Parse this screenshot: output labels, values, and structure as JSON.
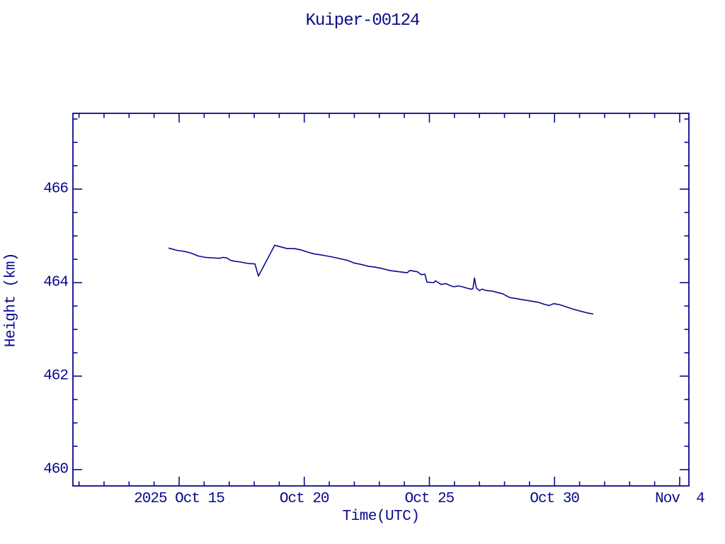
{
  "ink_color": "#0a0a8c",
  "background_color": "#ffffff",
  "chart_data": {
    "type": "line",
    "title": "Kuiper-00124",
    "xlabel": "Time(UTC)",
    "ylabel": "Height (km)",
    "x_unit": "day-of-2025-October decimal (Nov 4 = 35)",
    "xlim": [
      10.757,
      35.368
    ],
    "ylim": [
      459.652,
      467.621
    ],
    "grid": false,
    "legend": "none",
    "line_color": "#0a0a8c",
    "x_major_ticks": [
      {
        "value": 15,
        "label": "2025 Oct 15"
      },
      {
        "value": 20,
        "label": "Oct 20"
      },
      {
        "value": 25,
        "label": "Oct 25"
      },
      {
        "value": 30,
        "label": "Oct 30"
      },
      {
        "value": 35,
        "label": "Nov  4"
      }
    ],
    "x_minor_tick_step_days": 1,
    "y_major_ticks": [
      {
        "value": 460,
        "label": "460"
      },
      {
        "value": 462,
        "label": "462"
      },
      {
        "value": 464,
        "label": "464"
      },
      {
        "value": 466,
        "label": "466"
      }
    ],
    "y_minor_tick_step": 0.5,
    "points": [
      [
        14.58,
        464.74
      ],
      [
        14.92,
        464.69
      ],
      [
        15.2,
        464.67
      ],
      [
        15.48,
        464.63
      ],
      [
        15.76,
        464.57
      ],
      [
        16.05,
        464.54
      ],
      [
        16.33,
        464.53
      ],
      [
        16.61,
        464.52
      ],
      [
        16.75,
        464.54
      ],
      [
        16.9,
        464.53
      ],
      [
        17.04,
        464.48
      ],
      [
        17.18,
        464.46
      ],
      [
        17.46,
        464.44
      ],
      [
        17.74,
        464.41
      ],
      [
        18.03,
        464.4
      ],
      [
        18.17,
        464.14
      ],
      [
        18.82,
        464.8
      ],
      [
        19.3,
        464.73
      ],
      [
        19.58,
        464.73
      ],
      [
        19.87,
        464.7
      ],
      [
        20.15,
        464.65
      ],
      [
        20.43,
        464.61
      ],
      [
        20.71,
        464.59
      ],
      [
        21.0,
        464.56
      ],
      [
        21.28,
        464.53
      ],
      [
        21.7,
        464.48
      ],
      [
        21.99,
        464.42
      ],
      [
        22.27,
        464.39
      ],
      [
        22.55,
        464.35
      ],
      [
        22.84,
        464.33
      ],
      [
        23.12,
        464.3
      ],
      [
        23.4,
        464.26
      ],
      [
        23.83,
        464.23
      ],
      [
        24.11,
        464.21
      ],
      [
        24.22,
        464.26
      ],
      [
        24.53,
        464.23
      ],
      [
        24.67,
        464.17
      ],
      [
        24.82,
        464.18
      ],
      [
        24.9,
        464.01
      ],
      [
        25.18,
        464.0
      ],
      [
        25.24,
        464.04
      ],
      [
        25.47,
        463.96
      ],
      [
        25.66,
        463.98
      ],
      [
        25.86,
        463.93
      ],
      [
        26.0,
        463.91
      ],
      [
        26.15,
        463.93
      ],
      [
        26.32,
        463.91
      ],
      [
        26.51,
        463.88
      ],
      [
        26.65,
        463.86
      ],
      [
        26.74,
        463.87
      ],
      [
        26.8,
        464.1
      ],
      [
        26.88,
        463.88
      ],
      [
        27.0,
        463.83
      ],
      [
        27.11,
        463.86
      ],
      [
        27.28,
        463.83
      ],
      [
        27.5,
        463.82
      ],
      [
        27.64,
        463.8
      ],
      [
        27.93,
        463.76
      ],
      [
        28.21,
        463.68
      ],
      [
        28.78,
        463.63
      ],
      [
        29.34,
        463.58
      ],
      [
        29.63,
        463.53
      ],
      [
        29.79,
        463.51
      ],
      [
        29.96,
        463.55
      ],
      [
        30.19,
        463.53
      ],
      [
        30.47,
        463.48
      ],
      [
        30.76,
        463.43
      ],
      [
        31.04,
        463.39
      ],
      [
        31.32,
        463.35
      ],
      [
        31.55,
        463.33
      ]
    ]
  }
}
